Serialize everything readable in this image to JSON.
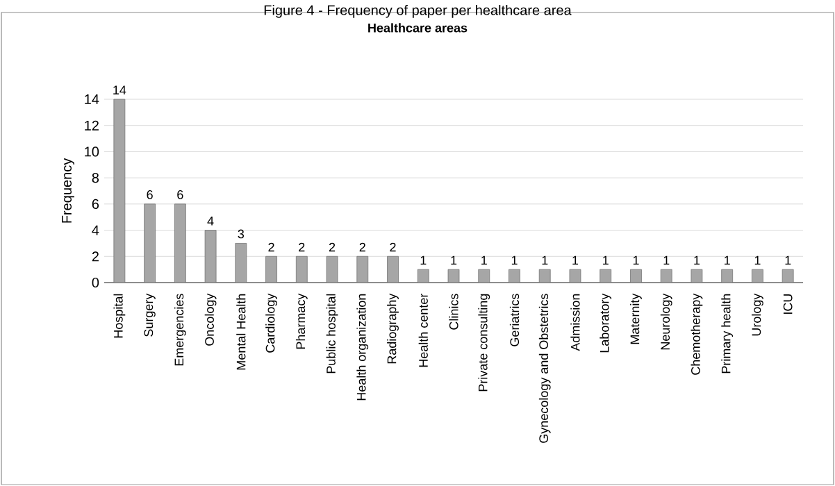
{
  "chart_data": {
    "type": "bar",
    "title": "Figure 4 - Frequency of paper per healthcare area",
    "subtitle": "Healthcare areas",
    "ylabel": "Frequency",
    "categories": [
      "Hospital",
      "Surgery",
      "Emergencies",
      "Oncology",
      "Mental Health",
      "Cardiology",
      "Pharmacy",
      "Public hospital",
      "Health organization",
      "Radiography",
      "Health center",
      "Clinics",
      "Private consulting",
      "Geriatrics",
      "Gynecology and Obstetrics",
      "Admission",
      "Laboratory",
      "Maternity",
      "Neurology",
      "Chemotherapy",
      "Primary health",
      "Urology",
      "ICU"
    ],
    "values": [
      14,
      6,
      6,
      4,
      3,
      2,
      2,
      2,
      2,
      2,
      1,
      1,
      1,
      1,
      1,
      1,
      1,
      1,
      1,
      1,
      1,
      1,
      1
    ],
    "color": "#a6a6a6",
    "ylim": [
      0,
      14
    ],
    "yticks": [
      0,
      2,
      4,
      6,
      8,
      10,
      12,
      14
    ],
    "grid": "y",
    "data_labels": true
  }
}
